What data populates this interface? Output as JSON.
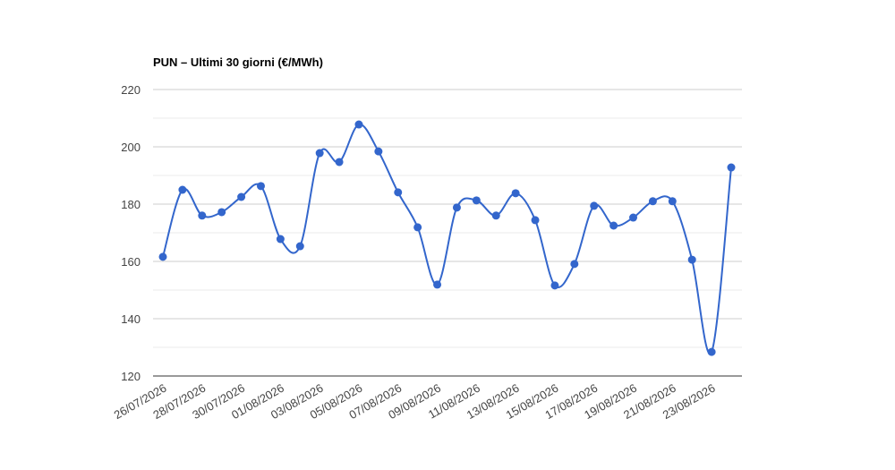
{
  "chart_data": {
    "type": "line",
    "title": "PUN – Ultimi 30 giorni (€/MWh)",
    "categories": [
      "26/07/2026",
      null,
      "28/07/2026",
      null,
      "30/07/2026",
      null,
      "01/08/2026",
      null,
      "03/08/2026",
      null,
      "05/08/2026",
      null,
      "07/08/2026",
      null,
      "09/08/2026",
      null,
      "11/08/2026",
      null,
      "13/08/2026",
      null,
      "15/08/2026",
      null,
      "17/08/2026",
      null,
      "19/08/2026",
      null,
      "21/08/2026",
      null,
      "23/08/2026",
      null
    ],
    "series": [
      {
        "name": "PUN",
        "color": "#3366cc",
        "values": [
          161.6,
          185,
          176,
          177.2,
          182.5,
          186.3,
          167.8,
          165.3,
          197.8,
          194.7,
          207.8,
          198.4,
          184.1,
          171.9,
          151.9,
          178.8,
          181.3,
          176,
          183.8,
          174.4,
          151.6,
          159.1,
          179.4,
          172.5,
          175.3,
          181,
          181,
          160.6,
          128.4,
          192.8
        ]
      }
    ],
    "ylim": [
      120,
      220
    ],
    "yticks": [
      120,
      140,
      160,
      180,
      200,
      220
    ],
    "grid": true,
    "minor_grid": true,
    "smooth": true
  }
}
